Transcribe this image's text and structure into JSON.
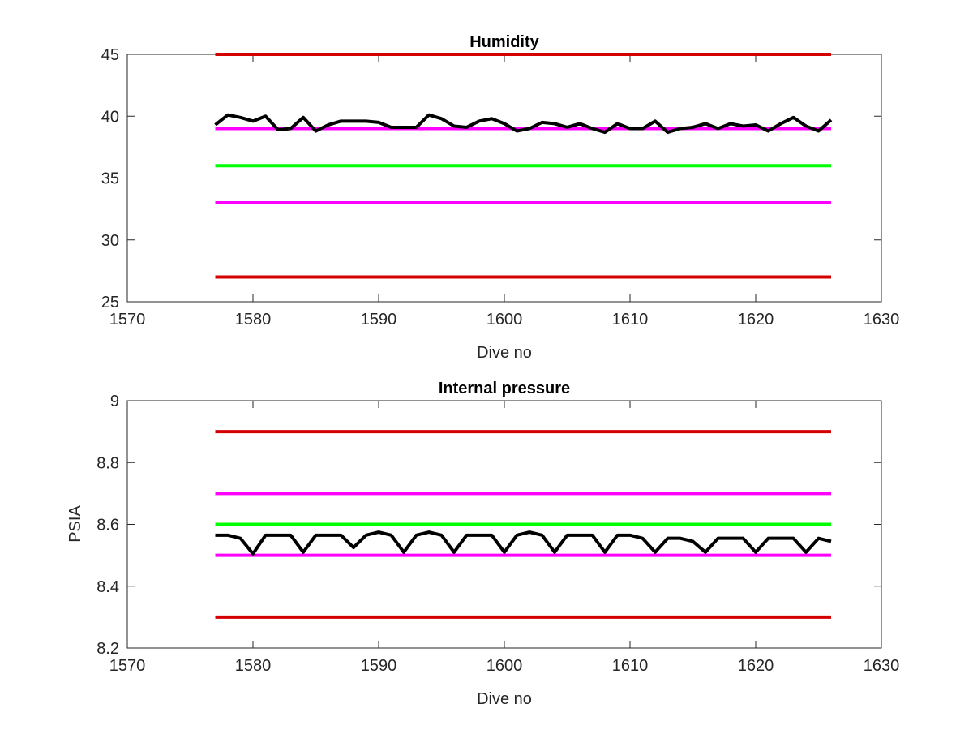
{
  "colors": {
    "red_limit": "#d40000",
    "magenta_limit": "#ff00ff",
    "green_target": "#00ff00",
    "measured": "#000000",
    "axes": "#262626"
  },
  "chart_data": [
    {
      "type": "line",
      "title": "Humidity",
      "xlabel": "Dive no",
      "ylabel": "",
      "xlim": [
        1570,
        1630
      ],
      "ylim": [
        25,
        45
      ],
      "xticks": [
        1570,
        1580,
        1590,
        1600,
        1610,
        1620,
        1630
      ],
      "xtick_labels": [
        "1570",
        "1580",
        "1590",
        "1600",
        "1610",
        "1620",
        "1630"
      ],
      "yticks": [
        25,
        30,
        35,
        40,
        45
      ],
      "ytick_labels": [
        "25",
        "30",
        "35",
        "40",
        "45"
      ],
      "grid": false,
      "legend": "none",
      "reference_lines": [
        {
          "y": 45,
          "x": [
            1577,
            1626
          ],
          "color": "#d40000"
        },
        {
          "y": 39,
          "x": [
            1577,
            1626
          ],
          "color": "#ff00ff"
        },
        {
          "y": 36,
          "x": [
            1577,
            1626
          ],
          "color": "#00ff00"
        },
        {
          "y": 33,
          "x": [
            1577,
            1626
          ],
          "color": "#ff00ff"
        },
        {
          "y": 27,
          "x": [
            1577,
            1626
          ],
          "color": "#d40000"
        }
      ],
      "series": [
        {
          "color": "#000000",
          "x": [
            1577,
            1578,
            1579,
            1580,
            1581,
            1582,
            1583,
            1584,
            1585,
            1586,
            1587,
            1588,
            1589,
            1590,
            1591,
            1592,
            1593,
            1594,
            1595,
            1596,
            1597,
            1598,
            1599,
            1600,
            1601,
            1602,
            1603,
            1604,
            1605,
            1606,
            1607,
            1608,
            1609,
            1610,
            1611,
            1612,
            1613,
            1614,
            1615,
            1616,
            1617,
            1618,
            1619,
            1620,
            1621,
            1622,
            1623,
            1624,
            1625,
            1626
          ],
          "y": [
            39.3,
            40.1,
            39.9,
            39.6,
            40.0,
            38.9,
            39.0,
            39.9,
            38.8,
            39.3,
            39.6,
            39.6,
            39.6,
            39.5,
            39.1,
            39.1,
            39.1,
            40.1,
            39.8,
            39.2,
            39.1,
            39.6,
            39.8,
            39.4,
            38.8,
            39.0,
            39.5,
            39.4,
            39.1,
            39.4,
            39.0,
            38.7,
            39.4,
            39.0,
            39.0,
            39.6,
            38.7,
            39.0,
            39.1,
            39.4,
            39.0,
            39.4,
            39.2,
            39.3,
            38.8,
            39.4,
            39.9,
            39.2,
            38.8,
            39.7
          ]
        }
      ]
    },
    {
      "type": "line",
      "title": "Internal pressure",
      "xlabel": "Dive no",
      "ylabel": "PSIA",
      "xlim": [
        1570,
        1630
      ],
      "ylim": [
        8.2,
        9.0
      ],
      "xticks": [
        1570,
        1580,
        1590,
        1600,
        1610,
        1620,
        1630
      ],
      "xtick_labels": [
        "1570",
        "1580",
        "1590",
        "1600",
        "1610",
        "1620",
        "1630"
      ],
      "yticks": [
        8.2,
        8.4,
        8.6,
        8.8,
        9.0
      ],
      "ytick_labels": [
        "8.2",
        "8.4",
        "8.6",
        "8.8",
        "9"
      ],
      "grid": false,
      "legend": "none",
      "reference_lines": [
        {
          "y": 8.9,
          "x": [
            1577,
            1626
          ],
          "color": "#d40000"
        },
        {
          "y": 8.7,
          "x": [
            1577,
            1626
          ],
          "color": "#ff00ff"
        },
        {
          "y": 8.6,
          "x": [
            1577,
            1626
          ],
          "color": "#00ff00"
        },
        {
          "y": 8.5,
          "x": [
            1577,
            1626
          ],
          "color": "#ff00ff"
        },
        {
          "y": 8.3,
          "x": [
            1577,
            1626
          ],
          "color": "#d40000"
        }
      ],
      "series": [
        {
          "color": "#000000",
          "x": [
            1577,
            1578,
            1579,
            1580,
            1581,
            1582,
            1583,
            1584,
            1585,
            1586,
            1587,
            1588,
            1589,
            1590,
            1591,
            1592,
            1593,
            1594,
            1595,
            1596,
            1597,
            1598,
            1599,
            1600,
            1601,
            1602,
            1603,
            1604,
            1605,
            1606,
            1607,
            1608,
            1609,
            1610,
            1611,
            1612,
            1613,
            1614,
            1615,
            1616,
            1617,
            1618,
            1619,
            1620,
            1621,
            1622,
            1623,
            1624,
            1625,
            1626
          ],
          "y": [
            8.565,
            8.565,
            8.555,
            8.505,
            8.565,
            8.565,
            8.565,
            8.51,
            8.565,
            8.565,
            8.565,
            8.525,
            8.565,
            8.575,
            8.565,
            8.51,
            8.565,
            8.575,
            8.565,
            8.51,
            8.565,
            8.565,
            8.565,
            8.51,
            8.565,
            8.575,
            8.565,
            8.51,
            8.565,
            8.565,
            8.565,
            8.51,
            8.565,
            8.565,
            8.555,
            8.51,
            8.555,
            8.555,
            8.545,
            8.51,
            8.555,
            8.555,
            8.555,
            8.51,
            8.555,
            8.555,
            8.555,
            8.51,
            8.555,
            8.545
          ]
        }
      ]
    }
  ]
}
